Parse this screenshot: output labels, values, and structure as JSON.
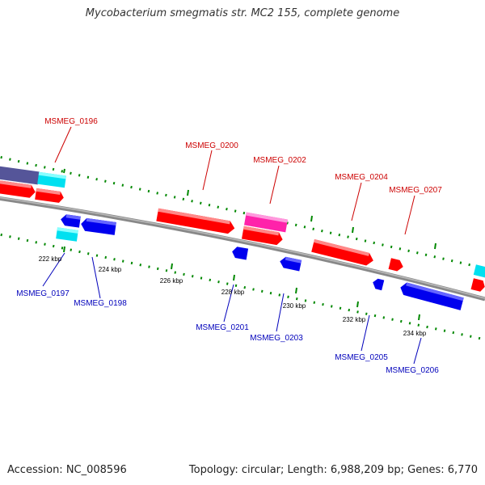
{
  "title": "Mycobacterium smegmatis str. MC2 155, complete genome",
  "footer": {
    "accession": "Accession: NC_008596",
    "summary": "Topology: circular; Length: 6,988,209 bp; Genes: 6,770"
  },
  "colors": {
    "forward_gene": "#ff0000",
    "reverse_gene": "#0000ee",
    "cyan_feature": "#00e0f0",
    "magenta_feature": "#ff22aa",
    "purple_feature": "#555599",
    "backbone": "#888888",
    "tick": "#008800",
    "forward_label": "#cc0000",
    "reverse_label": "#0000bb",
    "scale_label": "#000000"
  },
  "forward_labels": [
    "MSMEG_0196",
    "MSMEG_0200",
    "MSMEG_0202",
    "MSMEG_0204",
    "MSMEG_0207"
  ],
  "reverse_labels": [
    "MSMEG_0197",
    "MSMEG_0198",
    "MSMEG_0201",
    "MSMEG_0203",
    "MSMEG_0205",
    "MSMEG_0206"
  ],
  "scale_labels": [
    "222 kbp",
    "224 kbp",
    "226 kbp",
    "228 kbp",
    "230 kbp",
    "232 kbp",
    "234 kbp"
  ]
}
